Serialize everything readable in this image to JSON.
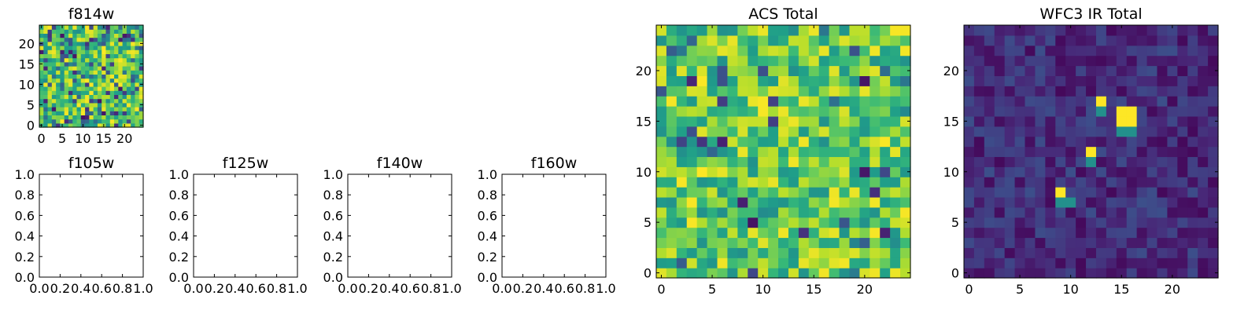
{
  "chart_data": [
    {
      "type": "heatmap",
      "title": "f814w",
      "grid": false,
      "xlim": [
        -0.5,
        24.5
      ],
      "ylim": [
        -0.5,
        24.5
      ],
      "xticks": [
        "0",
        "5",
        "10",
        "15",
        "20"
      ],
      "yticks": [
        "0",
        "5",
        "10",
        "15",
        "20"
      ],
      "colormap": "viridis",
      "pattern": "random noise",
      "seed": 11,
      "low_fraction": 0.22,
      "value_range": [
        0,
        1
      ]
    },
    {
      "type": "empty",
      "title": "f105w",
      "xlim": [
        0,
        1
      ],
      "ylim": [
        0,
        1
      ],
      "xticks": [
        "0.0",
        "0.2",
        "0.4",
        "0.6",
        "0.8",
        "1.0"
      ],
      "yticks": [
        "0.0",
        "0.2",
        "0.4",
        "0.6",
        "0.8",
        "1.0"
      ]
    },
    {
      "type": "empty",
      "title": "f125w",
      "xlim": [
        0,
        1
      ],
      "ylim": [
        0,
        1
      ],
      "xticks": [
        "0.0",
        "0.2",
        "0.4",
        "0.6",
        "0.8",
        "1.0"
      ],
      "yticks": [
        "0.0",
        "0.2",
        "0.4",
        "0.6",
        "0.8",
        "1.0"
      ]
    },
    {
      "type": "empty",
      "title": "f140w",
      "xlim": [
        0,
        1
      ],
      "ylim": [
        0,
        1
      ],
      "xticks": [
        "0.0",
        "0.2",
        "0.4",
        "0.6",
        "0.8",
        "1.0"
      ],
      "yticks": [
        "0.0",
        "0.2",
        "0.4",
        "0.6",
        "0.8",
        "1.0"
      ]
    },
    {
      "type": "empty",
      "title": "f160w",
      "xlim": [
        0,
        1
      ],
      "ylim": [
        0,
        1
      ],
      "xticks": [
        "0.0",
        "0.2",
        "0.4",
        "0.6",
        "0.8",
        "1.0"
      ],
      "yticks": [
        "0.0",
        "0.2",
        "0.4",
        "0.6",
        "0.8",
        "1.0"
      ]
    },
    {
      "type": "heatmap",
      "title": "ACS Total",
      "grid": false,
      "xlim": [
        -0.5,
        24.5
      ],
      "ylim": [
        -0.5,
        24.5
      ],
      "xticks": [
        "0",
        "5",
        "10",
        "15",
        "20"
      ],
      "yticks": [
        "0",
        "5",
        "10",
        "15",
        "20"
      ],
      "colormap": "viridis",
      "pattern": "random noise",
      "seed": 29,
      "low_fraction": 0.06,
      "value_range": [
        0,
        1
      ]
    },
    {
      "type": "heatmap",
      "title": "WFC3 IR Total",
      "grid": false,
      "xlim": [
        -0.5,
        24.5
      ],
      "ylim": [
        -0.5,
        24.5
      ],
      "xticks": [
        "0",
        "5",
        "10",
        "15",
        "20"
      ],
      "yticks": [
        "0",
        "5",
        "10",
        "15",
        "20"
      ],
      "colormap": "viridis",
      "pattern": "faint noise with bright sources",
      "seed": 53,
      "value_range": [
        0,
        1
      ],
      "bright_pixels": [
        {
          "x": 13,
          "y": 17,
          "value": 1.0
        },
        {
          "x": 15,
          "y": 16,
          "value": 1.0
        },
        {
          "x": 16,
          "y": 16,
          "value": 1.0
        },
        {
          "x": 15,
          "y": 15,
          "value": 1.0
        },
        {
          "x": 16,
          "y": 15,
          "value": 1.0
        },
        {
          "x": 15,
          "y": 14,
          "value": 0.5
        },
        {
          "x": 16,
          "y": 14,
          "value": 0.5
        },
        {
          "x": 13,
          "y": 16,
          "value": 0.5
        },
        {
          "x": 12,
          "y": 12,
          "value": 1.0
        },
        {
          "x": 12,
          "y": 11,
          "value": 0.5
        },
        {
          "x": 9,
          "y": 8,
          "value": 1.0
        },
        {
          "x": 9,
          "y": 7,
          "value": 0.5
        },
        {
          "x": 10,
          "y": 7,
          "value": 0.5
        }
      ]
    }
  ]
}
